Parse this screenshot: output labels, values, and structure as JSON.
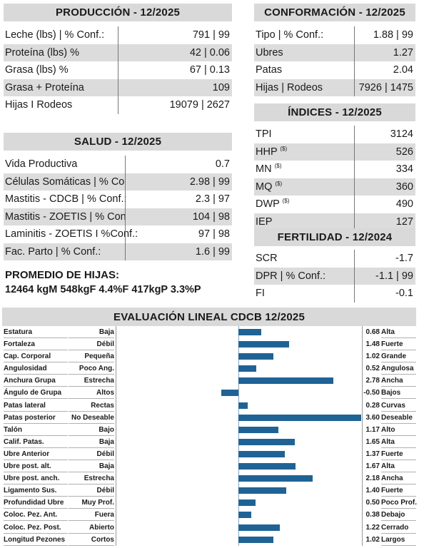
{
  "produccion": {
    "title": "PRODUCCIÓN - 12/2025",
    "rows": [
      {
        "label": "Leche (lbs) | % Conf.:",
        "value": "791 | 99",
        "shaded": false
      },
      {
        "label": "Proteína (lbs) %",
        "value": "42 | 0.06",
        "shaded": true
      },
      {
        "label": "Grasa (lbs) %",
        "value": "67 | 0.13",
        "shaded": false
      },
      {
        "label": "Grasa + Proteína",
        "value": "109",
        "shaded": true
      },
      {
        "label": "Hijas I Rodeos",
        "value": "19079 | 2627",
        "shaded": false
      }
    ]
  },
  "conformacion": {
    "title": "CONFORMACIÓN - 12/2025",
    "rows": [
      {
        "label": "Tipo | % Conf.:",
        "value": "1.88 | 99",
        "shaded": false
      },
      {
        "label": "Ubres",
        "value": "1.27",
        "shaded": true
      },
      {
        "label": "Patas",
        "value": "2.04",
        "shaded": false
      },
      {
        "label": "Hijas | Rodeos",
        "value": "7926 | 1475",
        "shaded": true
      }
    ]
  },
  "indices": {
    "title": "ÍNDICES - 12/2025",
    "sup": "($)",
    "rows": [
      {
        "label": "TPI",
        "value": "3124",
        "shaded": false,
        "sup": false
      },
      {
        "label": "HHP",
        "value": "526",
        "shaded": true,
        "sup": true
      },
      {
        "label": "MN",
        "value": "334",
        "shaded": false,
        "sup": true
      },
      {
        "label": "MQ",
        "value": "360",
        "shaded": true,
        "sup": true
      },
      {
        "label": "DWP",
        "value": "490",
        "shaded": false,
        "sup": true
      },
      {
        "label": "IEP",
        "value": "127",
        "shaded": true,
        "sup": false
      }
    ]
  },
  "salud": {
    "title": "SALUD - 12/2025",
    "rows": [
      {
        "label": "Vida Productiva",
        "value": "0.7",
        "shaded": false
      },
      {
        "label": "Células Somáticas | % Conf.:",
        "value": "2.98 | 99",
        "shaded": true
      },
      {
        "label": "Mastitis - CDCB | % Conf.:",
        "value": "2.3 | 97",
        "shaded": false
      },
      {
        "label": "Mastitis - ZOETIS | % Conf.:",
        "value": "104 | 98",
        "shaded": true
      },
      {
        "label": "Laminitis - ZOETIS I %Conf.:",
        "value": "97 | 98",
        "shaded": false
      },
      {
        "label": "Fac. Parto | % Conf.:",
        "value": "1.6 | 99",
        "shaded": true
      }
    ]
  },
  "fertilidad": {
    "title": "FERTILIDAD - 12/2024",
    "rows": [
      {
        "label": "SCR",
        "value": "-1.7",
        "shaded": false
      },
      {
        "label": "DPR | % Conf.:",
        "value": "-1.1 | 99",
        "shaded": true
      },
      {
        "label": "FI",
        "value": "-0.1",
        "shaded": false
      }
    ]
  },
  "promedio": {
    "title": "PROMEDIO DE HIJAS:",
    "value": "12464 kgM 548kgF 4.4%F 417kgP 3.3%P"
  },
  "lineal": {
    "title": "EVALUACIÓN LINEAL CDCB 12/2025",
    "bar_color": "#1f6396",
    "scale_min": -1.5,
    "scale_max": 3.6,
    "rows": [
      {
        "trait": "Estatura",
        "low": "Baja",
        "value": 0.68,
        "value_text": "0.68",
        "high": "Alta"
      },
      {
        "trait": "Fortaleza",
        "low": "Débil",
        "value": 1.48,
        "value_text": "1.48",
        "high": "Fuerte"
      },
      {
        "trait": "Cap. Corporal",
        "low": "Pequeña",
        "value": 1.02,
        "value_text": "1.02",
        "high": "Grande"
      },
      {
        "trait": "Angulosidad",
        "low": "Poco Ang.",
        "value": 0.52,
        "value_text": "0.52",
        "high": "Angulosa"
      },
      {
        "trait": "Anchura Grupa",
        "low": "Estrecha",
        "value": 2.78,
        "value_text": "2.78",
        "high": "Ancha"
      },
      {
        "trait": "Ángulo de Grupa",
        "low": "Altos",
        "value": -0.5,
        "value_text": "-0.50",
        "high": "Bajos"
      },
      {
        "trait": "Patas lateral",
        "low": "Rectas",
        "value": 0.28,
        "value_text": "0.28",
        "high": "Curvas"
      },
      {
        "trait": "Patas posterior",
        "low": "No Deseable",
        "value": 3.6,
        "value_text": "3.60",
        "high": "Deseable"
      },
      {
        "trait": "Talón",
        "low": "Bajo",
        "value": 1.17,
        "value_text": "1.17",
        "high": "Alto"
      },
      {
        "trait": "Calif. Patas.",
        "low": "Baja",
        "value": 1.65,
        "value_text": "1.65",
        "high": "Alta"
      },
      {
        "trait": "Ubre Anterior",
        "low": "Débil",
        "value": 1.37,
        "value_text": "1.37",
        "high": "Fuerte"
      },
      {
        "trait": "Ubre post. alt.",
        "low": "Baja",
        "value": 1.67,
        "value_text": "1.67",
        "high": "Alta"
      },
      {
        "trait": "Ubre post. anch.",
        "low": "Estrecha",
        "value": 2.18,
        "value_text": "2.18",
        "high": "Ancha"
      },
      {
        "trait": "Ligamento Sus.",
        "low": "Débil",
        "value": 1.4,
        "value_text": "1.40",
        "high": "Fuerte"
      },
      {
        "trait": "Profundidad Ubre",
        "low": "Muy Prof.",
        "value": 0.5,
        "value_text": "0.50",
        "high": "Poco Prof."
      },
      {
        "trait": "Coloc. Pez. Ant.",
        "low": "Fuera",
        "value": 0.38,
        "value_text": "0.38",
        "high": "Debajo"
      },
      {
        "trait": "Coloc. Pez. Post.",
        "low": "Abierto",
        "value": 1.22,
        "value_text": "1.22",
        "high": "Cerrado"
      },
      {
        "trait": "Longitud Pezones",
        "low": "Cortos",
        "value": 1.02,
        "value_text": "1.02",
        "high": "Largos"
      }
    ]
  }
}
